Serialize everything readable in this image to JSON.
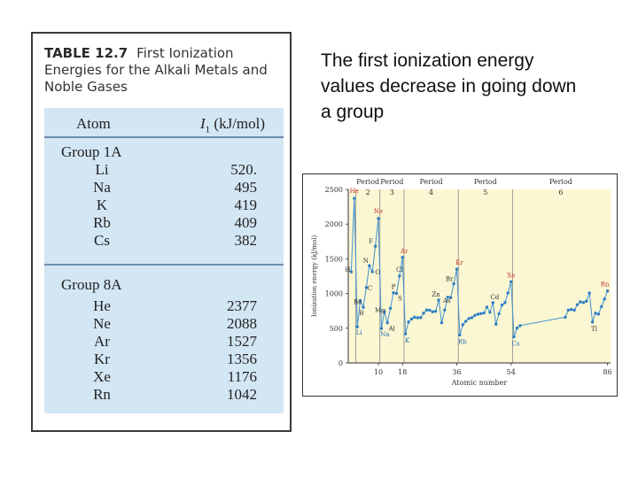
{
  "table": {
    "number": "TABLE 12.7",
    "title": "First Ionization Energies for the Alkali Metals and Noble Gases",
    "col_atom": "Atom",
    "col_energy_symbol": "I",
    "col_energy_sub": "1",
    "col_energy_unit": "(kJ/mol)",
    "groups": [
      {
        "name": "Group 1A",
        "rows": [
          {
            "atom": "Li",
            "value": "520."
          },
          {
            "atom": "Na",
            "value": "495"
          },
          {
            "atom": "K",
            "value": "419"
          },
          {
            "atom": "Rb",
            "value": "409"
          },
          {
            "atom": "Cs",
            "value": "382"
          }
        ]
      },
      {
        "name": "Group 8A",
        "rows": [
          {
            "atom": "He",
            "value": "2377"
          },
          {
            "atom": "Ne",
            "value": "2088"
          },
          {
            "atom": "Ar",
            "value": "1527"
          },
          {
            "atom": "Kr",
            "value": "1356"
          },
          {
            "atom": "Xe",
            "value": "1176"
          },
          {
            "atom": "Rn",
            "value": "1042"
          }
        ]
      }
    ]
  },
  "caption": "The first ionization energy values decrease in going down a group",
  "chart_data": {
    "type": "line",
    "xlabel": "Atomic number",
    "ylabel": "Ionization energy (kJ/mol)",
    "ylim": [
      0,
      2500
    ],
    "yticks": [
      "0",
      "500",
      "1000",
      "1500",
      "2000",
      "2500"
    ],
    "xticks": [
      "10",
      "18",
      "36",
      "54",
      "86"
    ],
    "periods": [
      {
        "label": "Period",
        "num": "2"
      },
      {
        "label": "Period",
        "num": "3"
      },
      {
        "label": "Period",
        "num": "4"
      },
      {
        "label": "Period",
        "num": "5"
      },
      {
        "label": "Period",
        "num": "6"
      }
    ],
    "colors": {
      "line": "#3e8fd0",
      "marker": "#2f7fc4",
      "noble_label": "#c0392b",
      "alkali_label": "#2a6fb5",
      "other_label": "#333333",
      "background": "#fbf7d2"
    },
    "series": [
      {
        "x": [
          1,
          2,
          3,
          4,
          5,
          6,
          7,
          8,
          9,
          10,
          11,
          12,
          13,
          14,
          15,
          16,
          17,
          18,
          19,
          20,
          21,
          22,
          23,
          24,
          25,
          26,
          27,
          28,
          29,
          30,
          31,
          32,
          33,
          34,
          35,
          36,
          37,
          38,
          39,
          40,
          41,
          42,
          43,
          44,
          45,
          46,
          47,
          48,
          49,
          50,
          51,
          52,
          53,
          54,
          55,
          56,
          57,
          72,
          73,
          74,
          75,
          76,
          77,
          78,
          79,
          80,
          81,
          82,
          83,
          84,
          85,
          86
        ],
        "y": [
          1312,
          2372,
          520,
          900,
          801,
          1086,
          1402,
          1314,
          1681,
          2081,
          496,
          738,
          578,
          787,
          1012,
          1000,
          1251,
          1521,
          419,
          590,
          633,
          659,
          651,
          653,
          717,
          762,
          760,
          737,
          745,
          906,
          579,
          762,
          947,
          941,
          1140,
          1351,
          403,
          550,
          600,
          640,
          652,
          684,
          702,
          710,
          720,
          804,
          731,
          868,
          558,
          709,
          834,
          869,
          1008,
          1170,
          376,
          503,
          538,
          659,
          761,
          770,
          760,
          840,
          880,
          870,
          890,
          1007,
          589,
          716,
          703,
          812,
          920,
          1037
        ]
      }
    ],
    "point_labels": [
      {
        "text": "He",
        "x": 2,
        "y": 2372,
        "kind": "noble"
      },
      {
        "text": "Ne",
        "x": 10,
        "y": 2081,
        "kind": "noble"
      },
      {
        "text": "Ar",
        "x": 18,
        "y": 1521,
        "kind": "noble"
      },
      {
        "text": "Kr",
        "x": 36,
        "y": 1351,
        "kind": "noble"
      },
      {
        "text": "Xe",
        "x": 54,
        "y": 1170,
        "kind": "noble"
      },
      {
        "text": "Rn",
        "x": 86,
        "y": 1037,
        "kind": "noble"
      },
      {
        "text": "H",
        "x": 1,
        "y": 1312,
        "kind": "other"
      },
      {
        "text": "Li",
        "x": 3,
        "y": 520,
        "kind": "alkali"
      },
      {
        "text": "Be",
        "x": 4,
        "y": 900,
        "kind": "other"
      },
      {
        "text": "B",
        "x": 5,
        "y": 801,
        "kind": "other"
      },
      {
        "text": "C",
        "x": 6,
        "y": 1086,
        "kind": "other"
      },
      {
        "text": "N",
        "x": 7,
        "y": 1402,
        "kind": "other"
      },
      {
        "text": "O",
        "x": 8,
        "y": 1314,
        "kind": "other"
      },
      {
        "text": "F",
        "x": 9,
        "y": 1681,
        "kind": "other"
      },
      {
        "text": "Na",
        "x": 11,
        "y": 496,
        "kind": "alkali"
      },
      {
        "text": "Mg",
        "x": 12,
        "y": 738,
        "kind": "other"
      },
      {
        "text": "Al",
        "x": 13,
        "y": 578,
        "kind": "other"
      },
      {
        "text": "P",
        "x": 15,
        "y": 1012,
        "kind": "other"
      },
      {
        "text": "S",
        "x": 16,
        "y": 1000,
        "kind": "other"
      },
      {
        "text": "Cl",
        "x": 17,
        "y": 1251,
        "kind": "other"
      },
      {
        "text": "K",
        "x": 19,
        "y": 419,
        "kind": "alkali"
      },
      {
        "text": "Zn",
        "x": 30,
        "y": 906,
        "kind": "other"
      },
      {
        "text": "As",
        "x": 33,
        "y": 947,
        "kind": "other"
      },
      {
        "text": "Br",
        "x": 35,
        "y": 1140,
        "kind": "other"
      },
      {
        "text": "Rb",
        "x": 37,
        "y": 403,
        "kind": "alkali"
      },
      {
        "text": "Cd",
        "x": 48,
        "y": 868,
        "kind": "other"
      },
      {
        "text": "Cs",
        "x": 55,
        "y": 376,
        "kind": "alkali"
      },
      {
        "text": "Tl",
        "x": 81,
        "y": 589,
        "kind": "other"
      }
    ]
  }
}
